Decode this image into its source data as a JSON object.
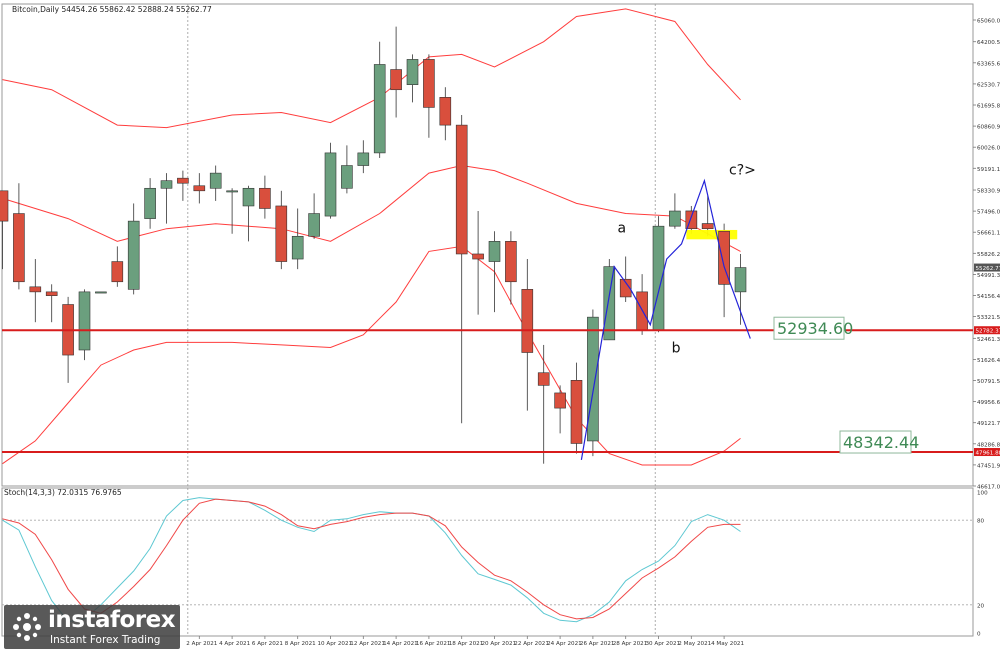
{
  "chart_data": [
    {
      "type": "candlestick",
      "symbol_header": "Bitcoin,Daily  54454.26 55862.42 52888.24 55262.77",
      "y_ticks": [
        "65060.00",
        "64200.55",
        "63365.60",
        "62530.70",
        "61695.80",
        "60860.90",
        "60026.00",
        "59191.10",
        "58330.90",
        "57496.00",
        "56661.10",
        "55826.20",
        "54991.30",
        "54156.40",
        "53321.50",
        "52461.30",
        "51626.40",
        "50791.50",
        "49956.60",
        "49121.70",
        "48286.80",
        "47451.90",
        "46617.00"
      ],
      "ylim": [
        46617,
        65060
      ],
      "x_labels": [
        "2 Apr 2021",
        "4 Apr 2021",
        "6 Apr 2021",
        "8 Apr 2021",
        "10 Apr 2021",
        "12 Apr 2021",
        "14 Apr 2021",
        "16 Apr 2021",
        "18 Apr 2021",
        "20 Apr 2021",
        "22 Apr 2021",
        "24 Apr 2021",
        "26 Apr 2021",
        "28 Apr 2021",
        "30 Apr 2021",
        "2 May 2021",
        "4 May 2021"
      ],
      "x_label_index": [
        12,
        14,
        16,
        18,
        20,
        22,
        24,
        26,
        28,
        30,
        32,
        34,
        36,
        38,
        40,
        42,
        44
      ],
      "candles": [
        {
          "i": 0,
          "o": 58300,
          "h": 58300,
          "l": 55200,
          "c": 57100
        },
        {
          "i": 1,
          "o": 57400,
          "h": 58600,
          "l": 54400,
          "c": 54700
        },
        {
          "i": 2,
          "o": 54500,
          "h": 55600,
          "l": 53100,
          "c": 54300
        },
        {
          "i": 3,
          "o": 54300,
          "h": 54600,
          "l": 53100,
          "c": 54150
        },
        {
          "i": 4,
          "o": 53800,
          "h": 54100,
          "l": 50700,
          "c": 51800
        },
        {
          "i": 5,
          "o": 52000,
          "h": 54400,
          "l": 51600,
          "c": 54300
        },
        {
          "i": 6,
          "o": 54300,
          "h": 54300,
          "l": 54300,
          "c": 54300
        },
        {
          "i": 7,
          "o": 55500,
          "h": 56100,
          "l": 54500,
          "c": 54700
        },
        {
          "i": 8,
          "o": 54400,
          "h": 57800,
          "l": 54200,
          "c": 57100
        },
        {
          "i": 9,
          "o": 57200,
          "h": 58800,
          "l": 56800,
          "c": 58400
        },
        {
          "i": 10,
          "o": 58400,
          "h": 59000,
          "l": 57000,
          "c": 58700
        },
        {
          "i": 11,
          "o": 58800,
          "h": 59100,
          "l": 57900,
          "c": 58600
        },
        {
          "i": 12,
          "o": 58500,
          "h": 59000,
          "l": 57800,
          "c": 58300
        },
        {
          "i": 13,
          "o": 58400,
          "h": 59300,
          "l": 57900,
          "c": 59000
        },
        {
          "i": 14,
          "o": 58300,
          "h": 58400,
          "l": 56600,
          "c": 58300
        },
        {
          "i": 15,
          "o": 57700,
          "h": 58500,
          "l": 56300,
          "c": 58400
        },
        {
          "i": 16,
          "o": 58400,
          "h": 58900,
          "l": 57200,
          "c": 57600
        },
        {
          "i": 17,
          "o": 57700,
          "h": 58300,
          "l": 55200,
          "c": 55500
        },
        {
          "i": 18,
          "o": 55600,
          "h": 57600,
          "l": 55200,
          "c": 56500
        },
        {
          "i": 19,
          "o": 56500,
          "h": 58200,
          "l": 56400,
          "c": 57400
        },
        {
          "i": 20,
          "o": 57300,
          "h": 60200,
          "l": 57200,
          "c": 59800
        },
        {
          "i": 21,
          "o": 58400,
          "h": 60100,
          "l": 58200,
          "c": 59300
        },
        {
          "i": 22,
          "o": 59300,
          "h": 60300,
          "l": 59000,
          "c": 59800
        },
        {
          "i": 23,
          "o": 59800,
          "h": 64200,
          "l": 59600,
          "c": 63300
        },
        {
          "i": 24,
          "o": 63100,
          "h": 64800,
          "l": 61200,
          "c": 62300
        },
        {
          "i": 25,
          "o": 62500,
          "h": 63700,
          "l": 61800,
          "c": 63500
        },
        {
          "i": 26,
          "o": 63500,
          "h": 63700,
          "l": 60400,
          "c": 61600
        },
        {
          "i": 27,
          "o": 62000,
          "h": 62400,
          "l": 60300,
          "c": 60900
        },
        {
          "i": 28,
          "o": 60900,
          "h": 61300,
          "l": 49100,
          "c": 55800
        },
        {
          "i": 29,
          "o": 55800,
          "h": 57500,
          "l": 53400,
          "c": 55600
        },
        {
          "i": 30,
          "o": 55500,
          "h": 56700,
          "l": 53500,
          "c": 56300
        },
        {
          "i": 31,
          "o": 56300,
          "h": 56700,
          "l": 53800,
          "c": 54700
        },
        {
          "i": 32,
          "o": 54400,
          "h": 55600,
          "l": 49600,
          "c": 51900
        },
        {
          "i": 33,
          "o": 51100,
          "h": 52200,
          "l": 47500,
          "c": 50600
        },
        {
          "i": 34,
          "o": 50300,
          "h": 50600,
          "l": 48700,
          "c": 49700
        },
        {
          "i": 35,
          "o": 50800,
          "h": 51500,
          "l": 47900,
          "c": 48300
        },
        {
          "i": 36,
          "o": 48400,
          "h": 53600,
          "l": 47800,
          "c": 53300
        },
        {
          "i": 37,
          "o": 52400,
          "h": 55600,
          "l": 52400,
          "c": 55300
        },
        {
          "i": 38,
          "o": 54800,
          "h": 55700,
          "l": 53900,
          "c": 54100
        },
        {
          "i": 39,
          "o": 54300,
          "h": 55000,
          "l": 52600,
          "c": 52800
        },
        {
          "i": 40,
          "o": 52800,
          "h": 57300,
          "l": 52700,
          "c": 56900
        },
        {
          "i": 41,
          "o": 56900,
          "h": 58200,
          "l": 56800,
          "c": 57500
        },
        {
          "i": 42,
          "o": 57500,
          "h": 57700,
          "l": 56600,
          "c": 56800
        },
        {
          "i": 43,
          "o": 57000,
          "h": 58100,
          "l": 56500,
          "c": 56800
        },
        {
          "i": 44,
          "o": 56700,
          "h": 57000,
          "l": 53300,
          "c": 54600
        },
        {
          "i": 45,
          "o": 54300,
          "h": 55800,
          "l": 53000,
          "c": 55262.77
        }
      ],
      "bands": {
        "upper": [
          [
            0,
            62700
          ],
          [
            3,
            62300
          ],
          [
            7,
            60900
          ],
          [
            10,
            60800
          ],
          [
            14,
            61300
          ],
          [
            17,
            61400
          ],
          [
            20,
            61000
          ],
          [
            23,
            62000
          ],
          [
            26,
            63600
          ],
          [
            28,
            63700
          ],
          [
            30,
            63200
          ],
          [
            33,
            64200
          ],
          [
            35,
            65200
          ],
          [
            38,
            65500
          ],
          [
            41,
            65000
          ],
          [
            43,
            63300
          ],
          [
            45,
            61900
          ]
        ],
        "middle": [
          [
            0,
            58000
          ],
          [
            4,
            57200
          ],
          [
            7,
            56300
          ],
          [
            10,
            56800
          ],
          [
            13,
            57000
          ],
          [
            17,
            56800
          ],
          [
            20,
            56300
          ],
          [
            23,
            57400
          ],
          [
            26,
            59000
          ],
          [
            28,
            59300
          ],
          [
            30,
            59100
          ],
          [
            32,
            58600
          ],
          [
            35,
            57800
          ],
          [
            38,
            57400
          ],
          [
            41,
            57300
          ],
          [
            43,
            56600
          ],
          [
            45,
            55900
          ]
        ],
        "lower": [
          [
            0,
            47500
          ],
          [
            2,
            48400
          ],
          [
            4,
            49900
          ],
          [
            6,
            51400
          ],
          [
            8,
            52000
          ],
          [
            10,
            52300
          ],
          [
            14,
            52300
          ],
          [
            17,
            52200
          ],
          [
            20,
            52100
          ],
          [
            22,
            52600
          ],
          [
            24,
            53900
          ],
          [
            26,
            55900
          ],
          [
            28,
            56100
          ],
          [
            30,
            55100
          ],
          [
            32,
            52700
          ],
          [
            35,
            49300
          ],
          [
            37,
            47900
          ],
          [
            39,
            47450
          ],
          [
            42,
            47450
          ],
          [
            44,
            48000
          ],
          [
            45,
            48500
          ]
        ]
      },
      "levels": [
        {
          "value": 52782.37,
          "label": "52782.37",
          "annotation": "52934.60",
          "color": "#d81c1c"
        },
        {
          "value": 47961.88,
          "label": "47961.88",
          "annotation": "48342.44",
          "color": "#d81c1c"
        }
      ],
      "zigzag": [
        [
          35.3,
          47650
        ],
        [
          37.3,
          55300
        ],
        [
          38.3,
          54400
        ],
        [
          39.5,
          53000
        ],
        [
          40.5,
          55600
        ],
        [
          41.4,
          56200
        ],
        [
          42.8,
          58700
        ],
        [
          44,
          55300
        ],
        [
          45.6,
          52450
        ]
      ],
      "wave_labels": [
        {
          "text": "a",
          "i": 37.5,
          "v": 56650
        },
        {
          "text": "b",
          "i": 40.8,
          "v": 51900
        },
        {
          "text": "c?>",
          "i": 44.3,
          "v": 58950
        }
      ],
      "highlight": {
        "i0": 41.7,
        "i1": 44.8,
        "v0": 56380,
        "v1": 56750,
        "color": "#ffff00"
      },
      "current_price": {
        "value": 55262.77,
        "label": "55262.77"
      },
      "vlines": [
        11.3,
        39.8
      ],
      "colors": {
        "up": "#6b9f7e",
        "down": "#d94f3d",
        "band": "#ff3d3d",
        "wave": "#2424d9",
        "grid": "#c8c8c8"
      }
    },
    {
      "type": "line",
      "title": "Stoch(14,3,3) 72.0315 76.9765",
      "ylim": [
        0,
        100
      ],
      "y_ticks": [
        "100",
        "80",
        "20",
        "0"
      ],
      "levels": [
        80,
        20
      ],
      "series": [
        {
          "color": "#5ec8d2",
          "values": [
            [
              0,
              80
            ],
            [
              1,
              73
            ],
            [
              2,
              47
            ],
            [
              3,
              23
            ],
            [
              4,
              8
            ],
            [
              5,
              10
            ],
            [
              6,
              20
            ],
            [
              7,
              32
            ],
            [
              8,
              44
            ],
            [
              9,
              60
            ],
            [
              10,
              83
            ],
            [
              11,
              94
            ],
            [
              12,
              96
            ],
            [
              13,
              95
            ],
            [
              14,
              94
            ],
            [
              15,
              93
            ],
            [
              16,
              87
            ],
            [
              17,
              80
            ],
            [
              18,
              75
            ],
            [
              19,
              72
            ],
            [
              20,
              80
            ],
            [
              21,
              81
            ],
            [
              22,
              84
            ],
            [
              23,
              86
            ],
            [
              24,
              85
            ],
            [
              25,
              85
            ],
            [
              26,
              83
            ],
            [
              27,
              71
            ],
            [
              28,
              55
            ],
            [
              29,
              42
            ],
            [
              30,
              38
            ],
            [
              31,
              34
            ],
            [
              32,
              25
            ],
            [
              33,
              14
            ],
            [
              34,
              9
            ],
            [
              35,
              8
            ],
            [
              36,
              13
            ],
            [
              37,
              22
            ],
            [
              38,
              37
            ],
            [
              39,
              45
            ],
            [
              40,
              51
            ],
            [
              41,
              62
            ],
            [
              42,
              79
            ],
            [
              43,
              84
            ],
            [
              44,
              80
            ],
            [
              45,
              72
            ]
          ]
        },
        {
          "color": "#f04848",
          "values": [
            [
              0,
              81
            ],
            [
              1,
              78
            ],
            [
              2,
              70
            ],
            [
              3,
              52
            ],
            [
              4,
              31
            ],
            [
              5,
              17
            ],
            [
              6,
              14
            ],
            [
              7,
              22
            ],
            [
              8,
              33
            ],
            [
              9,
              45
            ],
            [
              10,
              62
            ],
            [
              11,
              80
            ],
            [
              12,
              92
            ],
            [
              13,
              95
            ],
            [
              14,
              94
            ],
            [
              15,
              93
            ],
            [
              16,
              90
            ],
            [
              17,
              84
            ],
            [
              18,
              76
            ],
            [
              19,
              74
            ],
            [
              20,
              77
            ],
            [
              21,
              79
            ],
            [
              22,
              82
            ],
            [
              23,
              84
            ],
            [
              24,
              85
            ],
            [
              25,
              85
            ],
            [
              26,
              83
            ],
            [
              27,
              76
            ],
            [
              28,
              61
            ],
            [
              29,
              50
            ],
            [
              30,
              41
            ],
            [
              31,
              37
            ],
            [
              32,
              29
            ],
            [
              33,
              20
            ],
            [
              34,
              13
            ],
            [
              35,
              10
            ],
            [
              36,
              11
            ],
            [
              37,
              17
            ],
            [
              38,
              28
            ],
            [
              39,
              39
            ],
            [
              40,
              46
            ],
            [
              41,
              54
            ],
            [
              42,
              65
            ],
            [
              43,
              75
            ],
            [
              44,
              77
            ],
            [
              45,
              77
            ]
          ]
        }
      ]
    }
  ],
  "logo": {
    "name": "instaforex",
    "sub": "Instant Forex Trading"
  }
}
